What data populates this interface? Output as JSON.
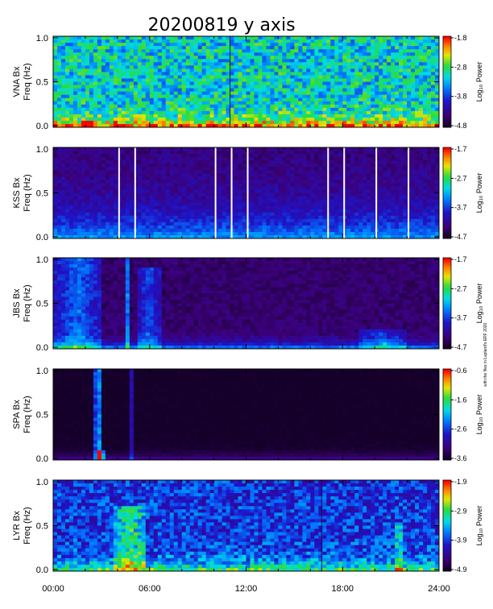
{
  "title": "20200819 y axis",
  "side_note": "with the files in Lapland's ERF 2020",
  "colorbar_label": "Log₁₀ Power",
  "chart_data": [
    {
      "type": "heatmap",
      "station": "VNA",
      "ylabel_line1": "VNA Bx",
      "ylabel_line2": "Freq (Hz)",
      "ylim": [
        0,
        1.0
      ],
      "yticks": [
        "1.0",
        "0.5",
        "0.0"
      ],
      "colorbar_range": [
        -4.8,
        -1.8
      ],
      "colorbar_ticks": [
        "-1.8",
        "-2.8",
        "-3.8",
        "-4.8"
      ],
      "background_level": 0.55,
      "noise": 0.35,
      "low_freq_boost": 0.45,
      "low_freq_width": 0.08,
      "bursts": [
        {
          "hour": 2.2,
          "width": 0.7,
          "level": 0.9,
          "fmax": 0.08
        },
        {
          "hour": 3.9,
          "width": 0.4,
          "level": 0.75,
          "fmax": 0.06
        }
      ],
      "lines": [
        {
          "hour": 11.0,
          "level": 0.2,
          "kind": "dark"
        }
      ],
      "gaps": []
    },
    {
      "type": "heatmap",
      "station": "KSS",
      "ylabel_line1": "KSS Bx",
      "ylabel_line2": "Freq (Hz)",
      "ylim": [
        0,
        1.0
      ],
      "yticks": [
        "1.0",
        "0.5",
        "0.0"
      ],
      "colorbar_range": [
        -4.7,
        -1.7
      ],
      "colorbar_ticks": [
        "-1.7",
        "-2.7",
        "-3.7",
        "-4.7"
      ],
      "background_level": 0.12,
      "noise": 0.12,
      "low_freq_boost": 0.35,
      "low_freq_width": 0.3,
      "bursts": [],
      "lines": [],
      "gaps": [
        4.1,
        5.1,
        10.1,
        11.1,
        12.1,
        17.1,
        18.1,
        20.1,
        22.1
      ]
    },
    {
      "type": "heatmap",
      "station": "JBS",
      "ylabel_line1": "JBS Bx",
      "ylabel_line2": "Freq (Hz)",
      "ylim": [
        0,
        1.0
      ],
      "yticks": [
        "1.0",
        "0.5",
        "0.0"
      ],
      "colorbar_range": [
        -4.7,
        -1.7
      ],
      "colorbar_ticks": [
        "-1.7",
        "-2.7",
        "-3.7",
        "-4.7"
      ],
      "background_level": 0.1,
      "noise": 0.1,
      "low_freq_boost": 0.4,
      "low_freq_width": 0.06,
      "bursts": [
        {
          "hour": 1.5,
          "width": 3.0,
          "level": 0.35,
          "fmax": 1.0
        },
        {
          "hour": 4.7,
          "width": 0.2,
          "level": 0.6,
          "fmax": 1.0
        },
        {
          "hour": 6.0,
          "width": 1.4,
          "level": 0.3,
          "fmax": 0.9
        },
        {
          "hour": 20.5,
          "width": 3.0,
          "level": 0.25,
          "fmax": 0.2
        }
      ],
      "lines": [],
      "gaps": []
    },
    {
      "type": "heatmap",
      "station": "SPA",
      "ylabel_line1": "SPA Bx",
      "ylabel_line2": "Freq (Hz)",
      "ylim": [
        0,
        1.0
      ],
      "yticks": [
        "1.0",
        "0.5",
        "0.0"
      ],
      "colorbar_range": [
        -3.6,
        -0.6
      ],
      "colorbar_ticks": [
        "-0.6",
        "-1.6",
        "-2.6",
        "-3.6"
      ],
      "background_level": 0.0,
      "noise": 0.03,
      "low_freq_boost": 0.2,
      "low_freq_width": 0.05,
      "bursts": [
        {
          "hour": 2.0,
          "width": 0.2,
          "level": 0.55,
          "fmax": 1.0
        },
        {
          "hour": 2.8,
          "width": 0.5,
          "level": 0.6,
          "fmax": 1.0
        },
        {
          "hour": 4.8,
          "width": 0.2,
          "level": 0.4,
          "fmax": 1.0
        },
        {
          "hour": 5.5,
          "width": 0.2,
          "level": 0.45,
          "fmax": 1.0
        },
        {
          "hour": 2.9,
          "width": 0.5,
          "level": 0.85,
          "fmax": 0.1
        }
      ],
      "lines": [],
      "gaps": []
    },
    {
      "type": "heatmap",
      "station": "LYR",
      "ylabel_line1": "LYR Bx",
      "ylabel_line2": "Freq (Hz)",
      "ylim": [
        0,
        1.0
      ],
      "yticks": [
        "1.0",
        "0.5",
        "0.0"
      ],
      "colorbar_range": [
        -4.9,
        -1.9
      ],
      "colorbar_ticks": [
        "-1.9",
        "-2.9",
        "-3.9",
        "-4.9"
      ],
      "background_level": 0.32,
      "noise": 0.28,
      "low_freq_boost": 0.4,
      "low_freq_width": 0.1,
      "bursts": [
        {
          "hour": 4.8,
          "width": 2.0,
          "level": 0.35,
          "fmax": 0.7
        },
        {
          "hour": 21.5,
          "width": 0.3,
          "level": 0.4,
          "fmax": 0.5
        }
      ],
      "lines": [
        {
          "hour": 16.7,
          "level": 0.0,
          "kind": "dark"
        }
      ],
      "gaps": []
    }
  ],
  "x_axis": {
    "ticks": [
      "00:00",
      "06:00",
      "12:00",
      "18:00",
      "24:00"
    ],
    "range_hours": [
      0,
      24
    ]
  }
}
